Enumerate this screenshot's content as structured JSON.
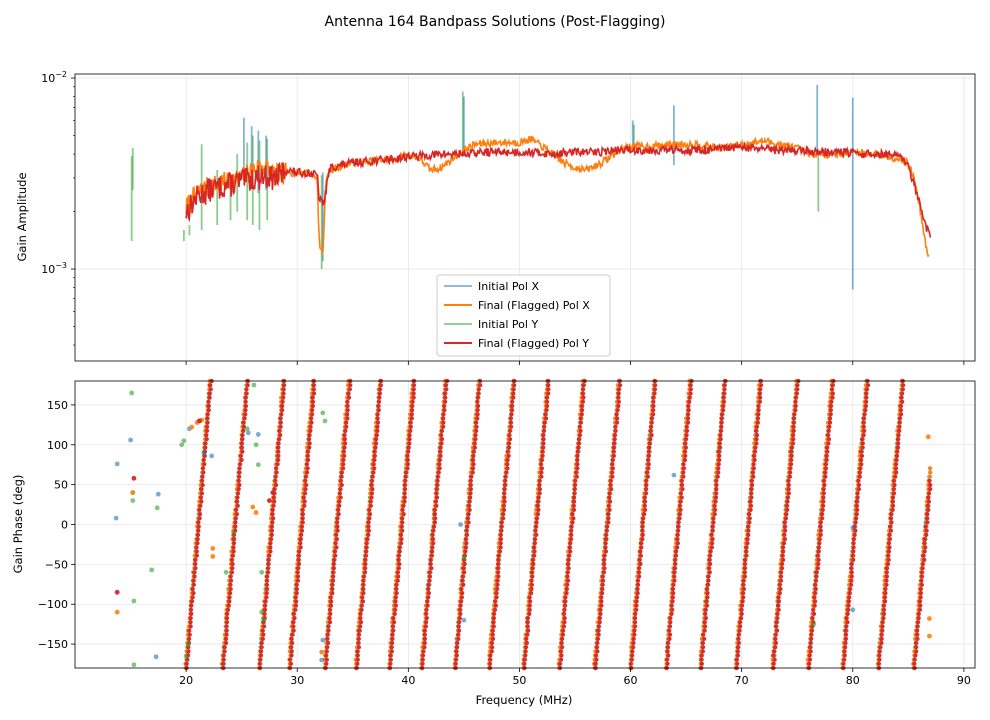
{
  "chart_data": {
    "type": "line",
    "title": "Antenna 164 Bandpass Solutions (Post-Flagging)",
    "xlabel": "Frequency (MHz)",
    "xlim": [
      10,
      91
    ],
    "xticks": [
      20,
      30,
      40,
      50,
      60,
      70,
      80,
      90
    ],
    "xtick_labels": [
      "20",
      "30",
      "40",
      "50",
      "60",
      "70",
      "80",
      "90"
    ],
    "colors": {
      "init_x": "#1f77b4",
      "final_x": "#ff7f0e",
      "init_y": "#2ca02c",
      "final_y": "#d62728"
    },
    "series_names": [
      "Initial Pol X",
      "Final (Flagged) Pol X",
      "Initial Pol Y",
      "Final (Flagged) Pol Y"
    ],
    "amplitude": {
      "ylabel": "Gain Amplitude",
      "yscale": "log",
      "ylim": [
        0.00033,
        0.0105
      ],
      "yticks": [
        0.001,
        0.01
      ],
      "ytick_labels": [
        "10−3",
        "10−2"
      ],
      "legend_loc": "lower center",
      "final_x": {
        "x": [
          20.0,
          21.0,
          22.0,
          23.0,
          24.0,
          25.0,
          26.0,
          27.0,
          28.0,
          29.0,
          30.0,
          31.0,
          31.8,
          32.0,
          32.3,
          32.6,
          33.0,
          34.0,
          35.0,
          37.0,
          39.0,
          40.0,
          41.0,
          42.0,
          43.0,
          44.0,
          45.0,
          46.0,
          48.0,
          50.0,
          51.0,
          52.0,
          53.0,
          54.0,
          55.0,
          56.0,
          57.0,
          58.0,
          59.0,
          60.0,
          62.0,
          64.0,
          66.0,
          68.0,
          70.0,
          72.0,
          74.0,
          75.0,
          76.0,
          78.0,
          80.0,
          82.0,
          84.0,
          85.0,
          85.5,
          86.0,
          86.5,
          86.9
        ],
        "y": [
          0.0021,
          0.0025,
          0.0027,
          0.0028,
          0.0029,
          0.003,
          0.0033,
          0.0035,
          0.0031,
          0.0032,
          0.0032,
          0.0032,
          0.003,
          0.0013,
          0.0012,
          0.003,
          0.0033,
          0.0035,
          0.0036,
          0.0037,
          0.0038,
          0.004,
          0.0038,
          0.0033,
          0.0034,
          0.0038,
          0.0042,
          0.0045,
          0.0046,
          0.0046,
          0.0048,
          0.0044,
          0.004,
          0.0036,
          0.0034,
          0.0033,
          0.0035,
          0.0038,
          0.0042,
          0.0044,
          0.0044,
          0.0045,
          0.0045,
          0.0043,
          0.0045,
          0.0047,
          0.0044,
          0.0043,
          0.004,
          0.004,
          0.0041,
          0.004,
          0.0038,
          0.0036,
          0.003,
          0.0022,
          0.0014,
          0.0011
        ]
      },
      "final_y": {
        "x": [
          20.0,
          21.0,
          22.0,
          23.0,
          24.0,
          25.0,
          26.0,
          27.0,
          28.0,
          29.0,
          30.0,
          31.0,
          31.8,
          32.0,
          32.4,
          32.8,
          33.0,
          34.0,
          35.0,
          37.0,
          39.0,
          40.0,
          41.0,
          43.0,
          45.0,
          47.0,
          49.0,
          51.0,
          53.0,
          55.0,
          57.0,
          59.0,
          61.0,
          63.0,
          65.0,
          67.0,
          69.0,
          71.0,
          73.0,
          75.0,
          77.0,
          79.0,
          81.0,
          83.0,
          84.5,
          85.0,
          85.5,
          86.0,
          86.5,
          87.0
        ],
        "y": [
          0.002,
          0.0024,
          0.0026,
          0.0027,
          0.0028,
          0.0029,
          0.003,
          0.0031,
          0.003,
          0.0033,
          0.0032,
          0.0032,
          0.0031,
          0.0023,
          0.0022,
          0.0031,
          0.0034,
          0.0035,
          0.0036,
          0.0037,
          0.0038,
          0.0039,
          0.0039,
          0.004,
          0.004,
          0.0041,
          0.0041,
          0.0041,
          0.004,
          0.0041,
          0.0041,
          0.0042,
          0.0042,
          0.0042,
          0.0042,
          0.0042,
          0.0043,
          0.0043,
          0.0042,
          0.0042,
          0.0041,
          0.0041,
          0.004,
          0.004,
          0.0038,
          0.0034,
          0.0028,
          0.0022,
          0.0017,
          0.0015
        ]
      },
      "init_x_spikes": [
        {
          "x": 25.2,
          "y0": 0.003,
          "y1": 0.0062
        },
        {
          "x": 25.9,
          "y0": 0.003,
          "y1": 0.0056
        },
        {
          "x": 26.5,
          "y0": 0.0025,
          "y1": 0.0053
        },
        {
          "x": 27.2,
          "y0": 0.0026,
          "y1": 0.005
        },
        {
          "x": 32.3,
          "y0": 0.0032,
          "y1": 0.0011
        },
        {
          "x": 45.0,
          "y0": 0.0042,
          "y1": 0.008
        },
        {
          "x": 60.2,
          "y0": 0.0044,
          "y1": 0.006
        },
        {
          "x": 63.9,
          "y0": 0.0044,
          "y1": 0.0072
        },
        {
          "x": 63.9,
          "y0": 0.0044,
          "y1": 0.0035
        },
        {
          "x": 76.8,
          "y0": 0.0041,
          "y1": 0.0092
        },
        {
          "x": 80.0,
          "y0": 0.0041,
          "y1": 0.0079
        },
        {
          "x": 80.0,
          "y0": 0.0041,
          "y1": 0.00078
        }
      ],
      "init_y_spikes": [
        {
          "x": 15.1,
          "y0": 0.0039,
          "y1": 0.0014
        },
        {
          "x": 15.2,
          "y0": 0.0043,
          "y1": 0.0026
        },
        {
          "x": 19.8,
          "y0": 0.0016,
          "y1": 0.0014
        },
        {
          "x": 20.3,
          "y0": 0.0017,
          "y1": 0.0015
        },
        {
          "x": 21.4,
          "y0": 0.0045,
          "y1": 0.0016
        },
        {
          "x": 22.8,
          "y0": 0.0033,
          "y1": 0.0017
        },
        {
          "x": 24.0,
          "y0": 0.0031,
          "y1": 0.0018
        },
        {
          "x": 24.6,
          "y0": 0.004,
          "y1": 0.002
        },
        {
          "x": 25.5,
          "y0": 0.0046,
          "y1": 0.0018
        },
        {
          "x": 26.0,
          "y0": 0.005,
          "y1": 0.0017
        },
        {
          "x": 26.6,
          "y0": 0.0047,
          "y1": 0.0016
        },
        {
          "x": 27.3,
          "y0": 0.0048,
          "y1": 0.0018
        },
        {
          "x": 32.2,
          "y0": 0.0031,
          "y1": 0.001
        },
        {
          "x": 44.9,
          "y0": 0.0042,
          "y1": 0.0085
        },
        {
          "x": 60.3,
          "y0": 0.0044,
          "y1": 0.0057
        },
        {
          "x": 76.9,
          "y0": 0.0041,
          "y1": 0.002
        }
      ]
    },
    "phase": {
      "ylabel": "Gain Phase (deg)",
      "ylim": [
        -180,
        180
      ],
      "yticks": [
        -150,
        -100,
        -50,
        0,
        50,
        100,
        150
      ],
      "ytick_labels": [
        "−150",
        "−100",
        "−50",
        "0",
        "50",
        "100",
        "150"
      ],
      "wrap_start_freqs": [
        20.0,
        23.3,
        26.6,
        29.3,
        32.5,
        35.3,
        38.3,
        41.2,
        44.2,
        47.3,
        50.4,
        53.6,
        56.8,
        60.0,
        63.2,
        66.3,
        69.5,
        72.8,
        76.0,
        79.1,
        82.3,
        85.5
      ],
      "wrap_width_mhz": 2.2,
      "init_x_points": [
        [
          13.7,
          8
        ],
        [
          13.8,
          76
        ],
        [
          15.0,
          106
        ],
        [
          15.2,
          40
        ],
        [
          17.3,
          -166
        ],
        [
          17.5,
          38
        ],
        [
          32.2,
          -170
        ],
        [
          32.3,
          -145
        ],
        [
          44.7,
          0
        ],
        [
          45.0,
          -120
        ],
        [
          63.9,
          62
        ],
        [
          80.0,
          -4
        ],
        [
          80.0,
          -107
        ],
        [
          21.6,
          90
        ],
        [
          22.3,
          86
        ],
        [
          20.3,
          120
        ],
        [
          25.6,
          115
        ],
        [
          26.5,
          113
        ]
      ],
      "init_y_points": [
        [
          15.1,
          165
        ],
        [
          15.2,
          30
        ],
        [
          15.3,
          -96
        ],
        [
          15.3,
          -176
        ],
        [
          16.9,
          -57
        ],
        [
          17.4,
          21
        ],
        [
          19.6,
          100
        ],
        [
          19.8,
          105
        ],
        [
          20.0,
          -165
        ],
        [
          20.2,
          -150
        ],
        [
          21.2,
          130
        ],
        [
          23.6,
          -60
        ],
        [
          24.3,
          -10
        ],
        [
          25.5,
          120
        ],
        [
          26.1,
          175
        ],
        [
          26.3,
          100
        ],
        [
          26.5,
          75
        ],
        [
          26.8,
          -60
        ],
        [
          26.8,
          -110
        ],
        [
          27.0,
          -120
        ],
        [
          32.3,
          140
        ],
        [
          32.5,
          130
        ],
        [
          45.0,
          -42
        ],
        [
          76.5,
          -125
        ]
      ],
      "final_x_points": [
        [
          13.8,
          -110
        ],
        [
          15.2,
          40
        ],
        [
          22.4,
          -40
        ],
        [
          22.4,
          -30
        ],
        [
          20.5,
          122
        ],
        [
          21.0,
          128
        ],
        [
          21.4,
          131
        ],
        [
          26.0,
          22
        ],
        [
          26.3,
          15
        ],
        [
          32.2,
          -160
        ],
        [
          86.8,
          110
        ],
        [
          86.9,
          -118
        ],
        [
          86.9,
          -140
        ]
      ],
      "final_y_points": [
        [
          13.8,
          -85
        ],
        [
          15.3,
          58
        ],
        [
          21.2,
          130
        ],
        [
          27.5,
          30
        ],
        [
          27.8,
          40
        ]
      ]
    }
  }
}
